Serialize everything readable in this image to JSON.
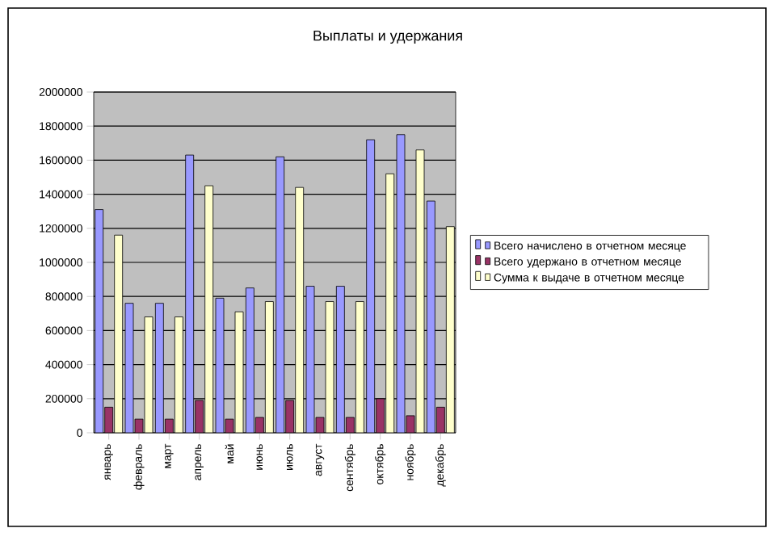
{
  "chart_data": {
    "type": "bar",
    "title": "Выплаты и удержания",
    "categories": [
      "январь",
      "февраль",
      "март",
      "апрель",
      "май",
      "июнь",
      "июль",
      "август",
      "сентябрь",
      "октябрь",
      "ноябрь",
      "декабрь"
    ],
    "series": [
      {
        "name": "Всего начислено в отчетном месяце",
        "color": "#9999ff",
        "values": [
          1310000,
          760000,
          760000,
          1630000,
          790000,
          850000,
          1620000,
          860000,
          860000,
          1720000,
          1750000,
          1360000
        ]
      },
      {
        "name": "Всего удержано в отчетном месяце",
        "color": "#993366",
        "values": [
          150000,
          80000,
          80000,
          190000,
          80000,
          90000,
          190000,
          90000,
          90000,
          200000,
          100000,
          150000
        ]
      },
      {
        "name": "Сумма к выдаче в отчетном месяце",
        "color": "#ffffcc",
        "values": [
          1160000,
          680000,
          680000,
          1450000,
          710000,
          770000,
          1440000,
          770000,
          770000,
          1520000,
          1660000,
          1210000
        ]
      }
    ],
    "ylim": [
      0,
      2000000
    ],
    "yticks": [
      0,
      200000,
      400000,
      600000,
      800000,
      1000000,
      1200000,
      1400000,
      1600000,
      1800000,
      2000000
    ],
    "grid": "y",
    "legend": "right"
  }
}
